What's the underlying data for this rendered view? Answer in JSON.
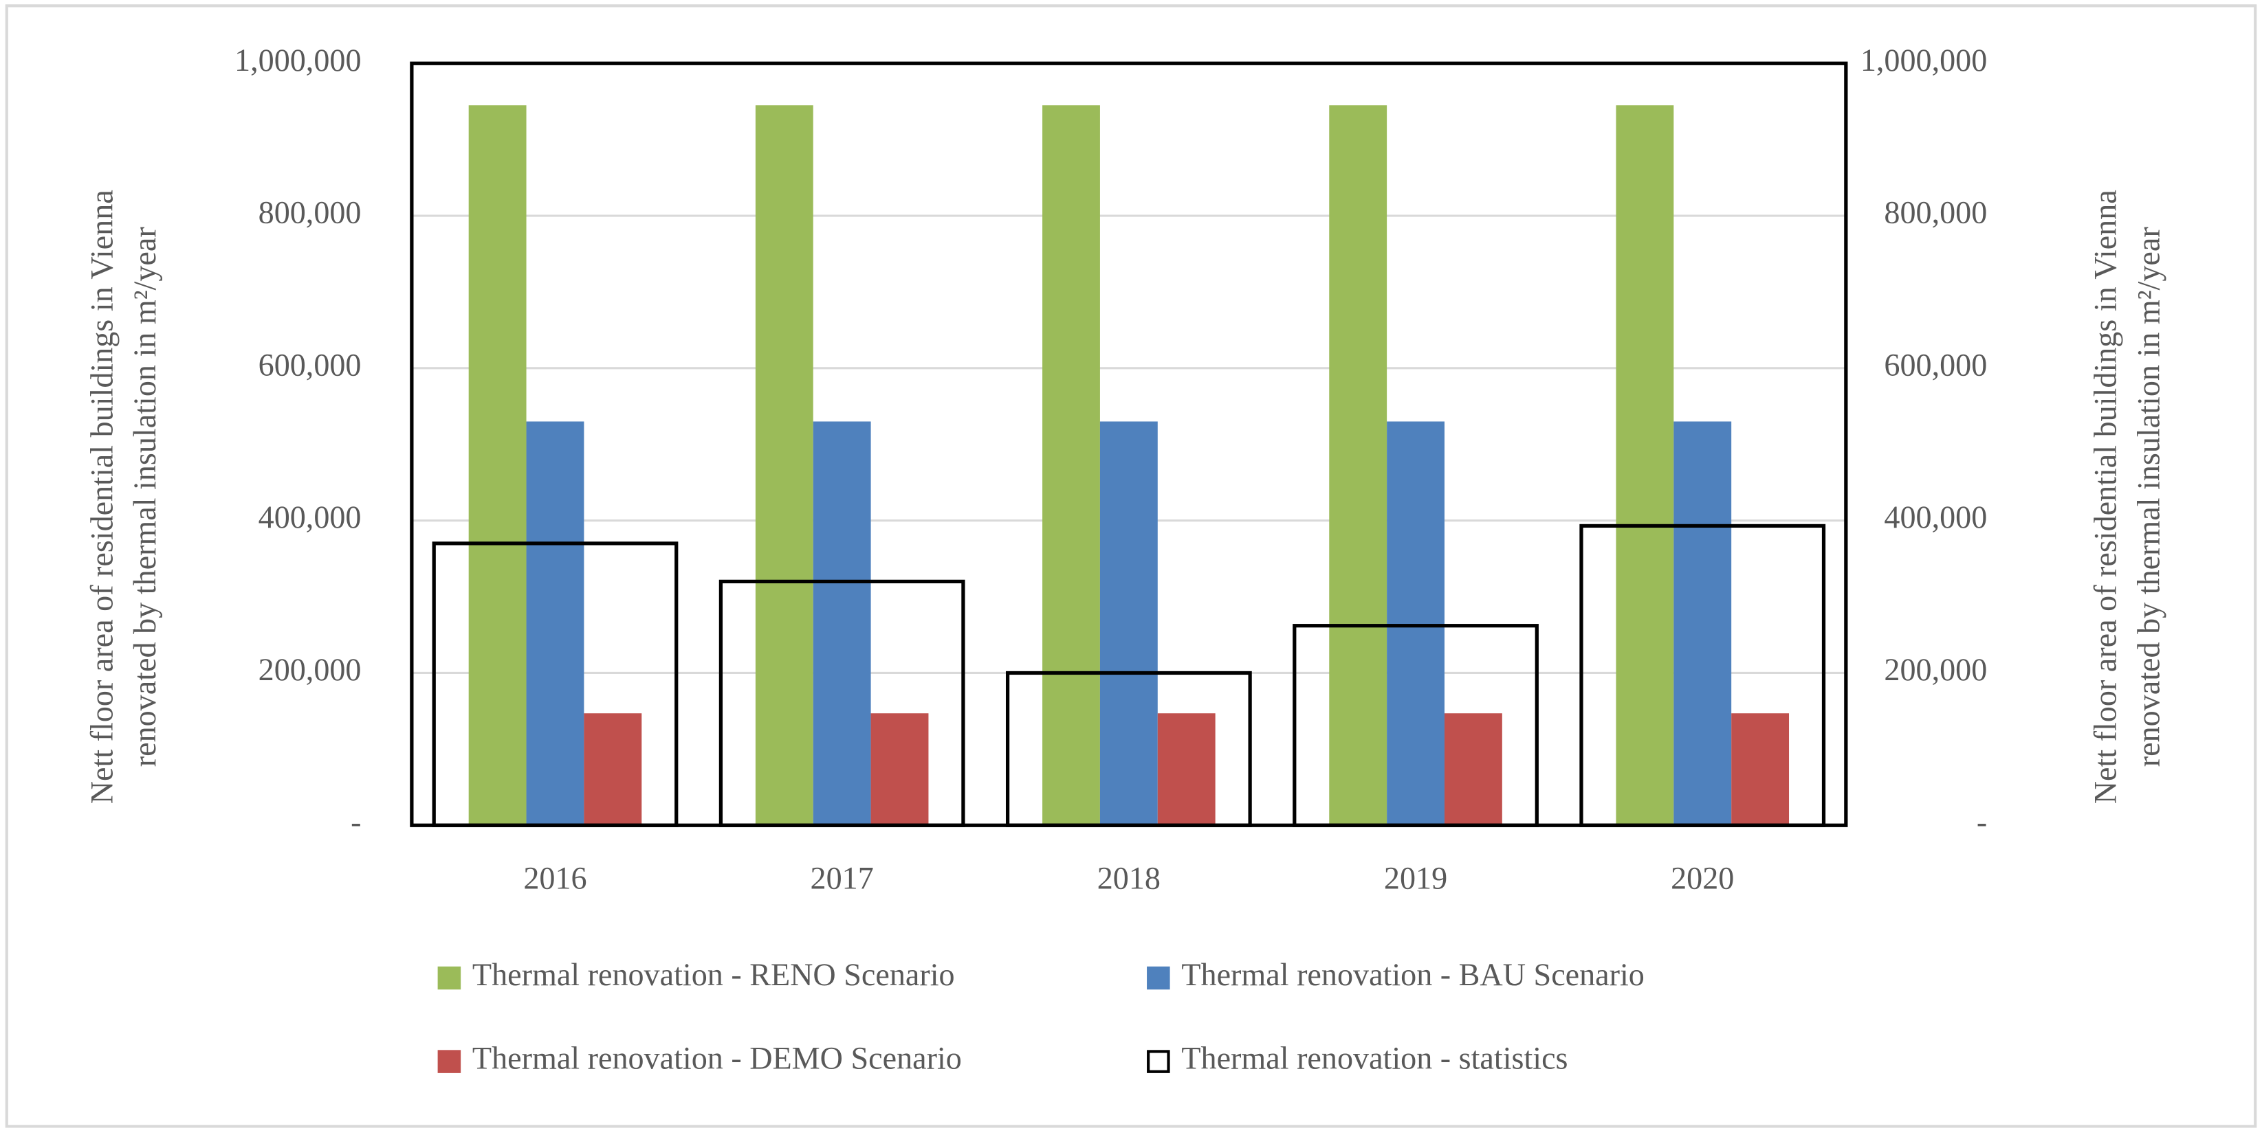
{
  "chart_data": {
    "type": "bar",
    "y_label": [
      "Nett floor area of residential buildings in Vienna",
      "renovated by thermal insulation in m²/year"
    ],
    "y2_label": [
      "Nett floor area of residential buildings in Vienna",
      "renovated by thermal insulation in m²/year"
    ],
    "categories": [
      "2016",
      "2017",
      "2018",
      "2019",
      "2020"
    ],
    "series": [
      {
        "name": "Thermal renovation - RENO Scenario",
        "color": "#9bbb59",
        "values": [
          945000,
          945000,
          945000,
          945000,
          945000
        ]
      },
      {
        "name": "Thermal renovation - BAU Scenario",
        "color": "#4f81bd",
        "values": [
          530000,
          530000,
          530000,
          530000,
          530000
        ]
      },
      {
        "name": "Thermal renovation - DEMO Scenario",
        "color": "#c0504d",
        "values": [
          147000,
          147000,
          147000,
          147000,
          147000
        ]
      },
      {
        "name": "Thermal renovation - statistics",
        "color": "#000000",
        "fill": "none",
        "values": [
          370000,
          320000,
          200000,
          262000,
          393000
        ]
      }
    ],
    "ylim": [
      0,
      1000000
    ],
    "yticks": [
      {
        "value": 0,
        "label": "-"
      },
      {
        "value": 200000,
        "label": "200,000"
      },
      {
        "value": 400000,
        "label": "400,000"
      },
      {
        "value": 600000,
        "label": "600,000"
      },
      {
        "value": 800000,
        "label": "800,000"
      },
      {
        "value": 1000000,
        "label": "1,000,000"
      }
    ],
    "y2lim": [
      0,
      1000000
    ],
    "y2ticks": [
      {
        "value": 0,
        "label": "-"
      },
      {
        "value": 200000,
        "label": "200,000"
      },
      {
        "value": 400000,
        "label": "400,000"
      },
      {
        "value": 600000,
        "label": "600,000"
      },
      {
        "value": 800000,
        "label": "800,000"
      },
      {
        "value": 1000000,
        "label": "1,000,000"
      }
    ],
    "grid": true,
    "legend": "bottom"
  }
}
